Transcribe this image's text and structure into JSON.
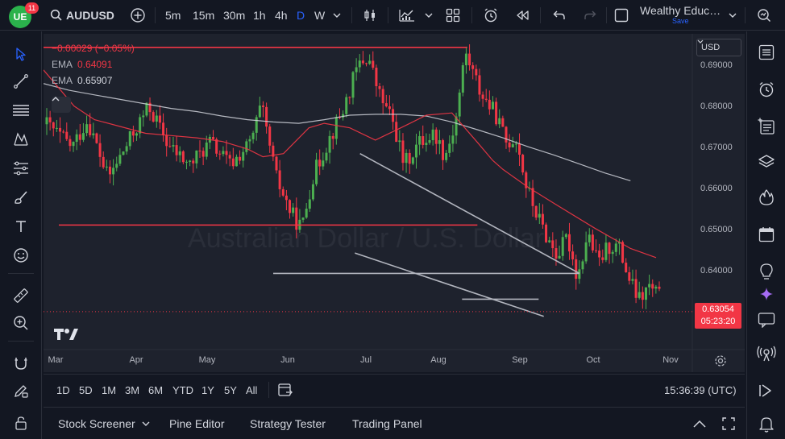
{
  "header": {
    "logo_text": "UE",
    "notification_count": "11",
    "symbol": "AUDUSD",
    "timeframes": [
      {
        "label": "5m",
        "active": false
      },
      {
        "label": "15m",
        "active": false
      },
      {
        "label": "30m",
        "active": false
      },
      {
        "label": "1h",
        "active": false
      },
      {
        "label": "4h",
        "active": false
      },
      {
        "label": "D",
        "active": true
      },
      {
        "label": "W",
        "active": false
      }
    ],
    "layout_name": "Wealthy Educ…",
    "save_label": "Save"
  },
  "legend": {
    "change": "−0.00029 (−0.05%)",
    "ema1_label": "EMA",
    "ema1_value": "0.64091",
    "ema2_label": "EMA",
    "ema2_value": "0.65907"
  },
  "price_scale": {
    "currency": "USD",
    "labels": [
      "0.69000",
      "0.68000",
      "0.67000",
      "0.66000",
      "0.65000",
      "0.64000"
    ],
    "current_price": "0.63054",
    "countdown": "05:23:20"
  },
  "time_axis": {
    "months": [
      "Mar",
      "Apr",
      "May",
      "Jun",
      "Jul",
      "Aug",
      "Sep",
      "Oct",
      "Nov"
    ]
  },
  "chart_data": {
    "type": "candlestick",
    "symbol": "AUDUSD",
    "interval": "D",
    "ylim": [
      0.6225,
      0.692
    ],
    "last_price": 0.63054,
    "indicators": [
      {
        "name": "EMA",
        "value": 0.64091,
        "color": "#f23645"
      },
      {
        "name": "EMA",
        "value": 0.65907,
        "color": "#d1d4dc"
      }
    ],
    "ema_fast_path": [
      [
        0.0,
        0.684
      ],
      [
        0.03,
        0.68
      ],
      [
        0.06,
        0.676
      ],
      [
        0.1,
        0.673
      ],
      [
        0.15,
        0.6715
      ],
      [
        0.2,
        0.67
      ],
      [
        0.25,
        0.6695
      ],
      [
        0.3,
        0.669
      ],
      [
        0.35,
        0.6682
      ],
      [
        0.4,
        0.6665
      ],
      [
        0.43,
        0.6648
      ],
      [
        0.47,
        0.6655
      ],
      [
        0.52,
        0.6712
      ],
      [
        0.55,
        0.6722
      ],
      [
        0.6,
        0.6712
      ],
      [
        0.65,
        0.6685
      ],
      [
        0.7,
        0.6712
      ],
      [
        0.75,
        0.674
      ],
      [
        0.8,
        0.6745
      ],
      [
        0.85,
        0.668
      ],
      [
        0.88,
        0.664
      ],
      [
        0.9,
        0.662
      ],
      [
        0.95,
        0.658
      ],
      [
        1.0,
        0.6545
      ],
      [
        1.08,
        0.649
      ],
      [
        1.15,
        0.6445
      ],
      [
        1.2,
        0.6425
      ]
    ],
    "ema_slow_path": [
      [
        0.0,
        0.681
      ],
      [
        0.05,
        0.6795
      ],
      [
        0.1,
        0.6785
      ],
      [
        0.15,
        0.6775
      ],
      [
        0.2,
        0.6765
      ],
      [
        0.25,
        0.6755
      ],
      [
        0.3,
        0.6748
      ],
      [
        0.35,
        0.6738
      ],
      [
        0.4,
        0.673
      ],
      [
        0.45,
        0.6725
      ],
      [
        0.5,
        0.6722
      ],
      [
        0.55,
        0.673
      ],
      [
        0.6,
        0.674
      ],
      [
        0.65,
        0.6742
      ],
      [
        0.7,
        0.6742
      ],
      [
        0.75,
        0.6738
      ],
      [
        0.8,
        0.6725
      ],
      [
        0.85,
        0.6708
      ],
      [
        0.9,
        0.669
      ],
      [
        0.95,
        0.667
      ],
      [
        1.0,
        0.6652
      ],
      [
        1.05,
        0.6632
      ],
      [
        1.1,
        0.6612
      ],
      [
        1.15,
        0.6595
      ]
    ],
    "drawings": [
      {
        "type": "horizontal",
        "color": "#f23645",
        "price": 0.689,
        "from": 0.0,
        "to": 0.83
      },
      {
        "type": "horizontal",
        "color": "#f23645",
        "price": 0.6497,
        "from": 0.03,
        "to": 0.85
      },
      {
        "type": "horizontal",
        "color": "#b2b5be",
        "price": 0.639,
        "from": 0.45,
        "to": 1.05
      },
      {
        "type": "horizontal",
        "color": "#b2b5be",
        "price": 0.6333,
        "from": 0.82,
        "to": 0.97
      },
      {
        "type": "trend",
        "color": "#b2b5be",
        "from": [
          0.62,
          0.6655
        ],
        "to": [
          1.05,
          0.639
        ]
      },
      {
        "type": "trend",
        "color": "#b2b5be",
        "from": [
          0.61,
          0.6435
        ],
        "to": [
          0.98,
          0.6295
        ]
      }
    ],
    "watermark": "Australian Dollar / U.S. Dollar",
    "grid": false
  },
  "range_bar": {
    "ranges": [
      "1D",
      "5D",
      "1M",
      "3M",
      "6M",
      "YTD",
      "1Y",
      "5Y",
      "All"
    ],
    "clock": "15:36:39 (UTC)"
  },
  "bottom_panel": {
    "tabs": [
      "Stock Screener",
      "Pine Editor",
      "Strategy Tester",
      "Trading Panel"
    ]
  },
  "colors": {
    "background": "#131722",
    "chart_bg": "#1e222d",
    "up": "#4caf50",
    "down": "#f23645",
    "accent": "#2962ff"
  }
}
